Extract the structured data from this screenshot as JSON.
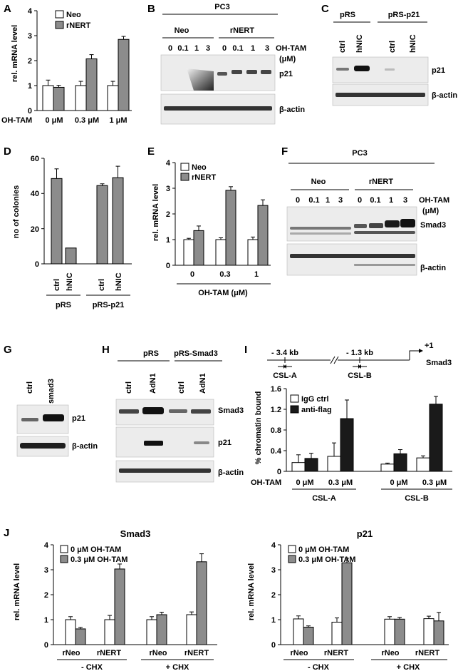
{
  "colors": {
    "bar_open": "#ffffff",
    "bar_grey": "#8c8c8c",
    "bar_black": "#1a1a1a",
    "band": "#2a2a2a"
  },
  "panels": {
    "A": {
      "label": "A",
      "chart_data": {
        "type": "bar",
        "ylabel": "rel. mRNA level",
        "ylim": [
          0,
          4
        ],
        "yticks": [
          "0",
          "1",
          "2",
          "3",
          "4"
        ],
        "xtitle": "OH-TAM",
        "categories": [
          "0 μM",
          "0.3 μM",
          "1 μM"
        ],
        "series": [
          {
            "name": "Neo",
            "values": [
              1.0,
              1.0,
              1.0
            ],
            "errors": [
              0.22,
              0.17,
              0.17
            ]
          },
          {
            "name": "rNERT",
            "values": [
              0.93,
              2.07,
              2.85
            ],
            "errors": [
              0.08,
              0.17,
              0.12
            ]
          }
        ]
      }
    },
    "B": {
      "label": "B",
      "cell_line": "PC3",
      "groups": [
        "Neo",
        "rNERT"
      ],
      "lanes": [
        "0",
        "0.1",
        "1",
        "3",
        "0",
        "0.1",
        "1",
        "3"
      ],
      "treatment": "OH-TAM",
      "unit": "(μM)",
      "bands": [
        "p21",
        "β-actin"
      ]
    },
    "C": {
      "label": "C",
      "groups": [
        "pRS",
        "pRS-p21"
      ],
      "lanes": [
        "ctrl",
        "hNIC",
        "ctrl",
        "hNIC"
      ],
      "bands": [
        "p21",
        "β-actin"
      ]
    },
    "D": {
      "label": "D",
      "chart_data": {
        "type": "bar",
        "ylabel": "no of colonies",
        "ylim": [
          0,
          60
        ],
        "yticks": [
          "0",
          "20",
          "40",
          "60"
        ],
        "categories": [
          "ctrl",
          "hNIC",
          "ctrl",
          "hNIC"
        ],
        "groups": [
          "pRS",
          "pRS-p21"
        ],
        "values": [
          48.5,
          9,
          44.5,
          49
        ],
        "errors": [
          5.5,
          0,
          1,
          6.5
        ]
      }
    },
    "E": {
      "label": "E",
      "chart_data": {
        "type": "bar",
        "ylabel": "rel. mRNA level",
        "ylim": [
          0,
          4
        ],
        "yticks": [
          "0",
          "1",
          "2",
          "3",
          "4"
        ],
        "xtitle": "OH-TAM (μM)",
        "categories": [
          "0",
          "0.3",
          "1"
        ],
        "series": [
          {
            "name": "Neo",
            "values": [
              1.0,
              1.0,
              1.0
            ],
            "errors": [
              0.05,
              0.07,
              0.1
            ]
          },
          {
            "name": "rNERT",
            "values": [
              1.35,
              2.92,
              2.33
            ],
            "errors": [
              0.18,
              0.14,
              0.22
            ]
          }
        ]
      }
    },
    "F": {
      "label": "F",
      "cell_line": "PC3",
      "groups": [
        "Neo",
        "rNERT"
      ],
      "lanes": [
        "0",
        "0.1",
        "1",
        "3",
        "0",
        "0.1",
        "1",
        "3"
      ],
      "treatment": "OH-TAM",
      "unit": "(μM)",
      "bands": [
        "Smad3",
        "β-actin"
      ]
    },
    "G": {
      "label": "G",
      "lanes": [
        "ctrl",
        "smad3"
      ],
      "bands": [
        "p21",
        "β-actin"
      ]
    },
    "H": {
      "label": "H",
      "groups": [
        "pRS",
        "pRS-Smad3"
      ],
      "lanes": [
        "ctrl",
        "AdN1",
        "ctrl",
        "AdN1"
      ],
      "bands": [
        "Smad3",
        "p21",
        "β-actin"
      ]
    },
    "I": {
      "label": "I",
      "schematic": {
        "site_a_distance": "- 3.4 kb",
        "site_b_distance": "- 1.3 kb",
        "site_a": "CSL-A",
        "site_b": "CSL-B",
        "tss": "+1",
        "gene": "Smad3"
      },
      "chart_data": {
        "type": "bar",
        "ylabel": "% chromatin bound",
        "ylim": [
          0,
          1.6
        ],
        "yticks": [
          "0",
          "0.4",
          "0.8",
          "1.2",
          "1.6"
        ],
        "xtitle": "OH-TAM",
        "categories": [
          "0 μM",
          "0.3 μM",
          "0 μM",
          "0.3 μM"
        ],
        "groups": [
          "CSL-A",
          "CSL-B"
        ],
        "series": [
          {
            "name": "IgG ctrl",
            "values": [
              0.17,
              0.29,
              0.14,
              0.26
            ],
            "errors": [
              0.15,
              0.26,
              0.02,
              0.04
            ]
          },
          {
            "name": "anti-flag",
            "values": [
              0.25,
              1.02,
              0.34,
              1.3
            ],
            "errors": [
              0.1,
              0.36,
              0.08,
              0.15
            ]
          }
        ]
      }
    },
    "J": {
      "label": "J",
      "charts": [
        {
          "title": "Smad3",
          "chart_data": {
            "type": "bar",
            "ylabel": "rel. mRNA level",
            "ylim": [
              0,
              4
            ],
            "yticks": [
              "0",
              "1",
              "2",
              "3",
              "4"
            ],
            "categories": [
              "rNeo",
              "rNERT",
              "rNeo",
              "rNERT"
            ],
            "groups": [
              "- CHX",
              "+ CHX"
            ],
            "series": [
              {
                "name": "0 μM OH-TAM",
                "values": [
                  1.0,
                  1.0,
                  1.0,
                  1.2
                ],
                "errors": [
                  0.12,
                  0.17,
                  0.12,
                  0.11
                ]
              },
              {
                "name": "0.3 μM OH-TAM",
                "values": [
                  0.63,
                  3.03,
                  1.2,
                  3.32
                ],
                "errors": [
                  0.06,
                  0.2,
                  0.1,
                  0.32
                ]
              }
            ]
          }
        },
        {
          "title": "p21",
          "chart_data": {
            "type": "bar",
            "ylabel": "rel. mRNA level",
            "ylim": [
              0,
              4
            ],
            "yticks": [
              "0",
              "1",
              "2",
              "3",
              "4"
            ],
            "categories": [
              "rNeo",
              "rNERT",
              "rNeo",
              "rNERT"
            ],
            "groups": [
              "- CHX",
              "+ CHX"
            ],
            "series": [
              {
                "name": "0 μM OH-TAM",
                "values": [
                  1.03,
                  0.9,
                  1.02,
                  1.04
                ],
                "errors": [
                  0.12,
                  0.17,
                  0.1,
                  0.1
                ]
              },
              {
                "name": "0.3 μM OH-TAM",
                "values": [
                  0.7,
                  3.28,
                  1.02,
                  0.95
                ],
                "errors": [
                  0.05,
                  0.18,
                  0.07,
                  0.34
                ]
              }
            ]
          }
        }
      ]
    }
  }
}
